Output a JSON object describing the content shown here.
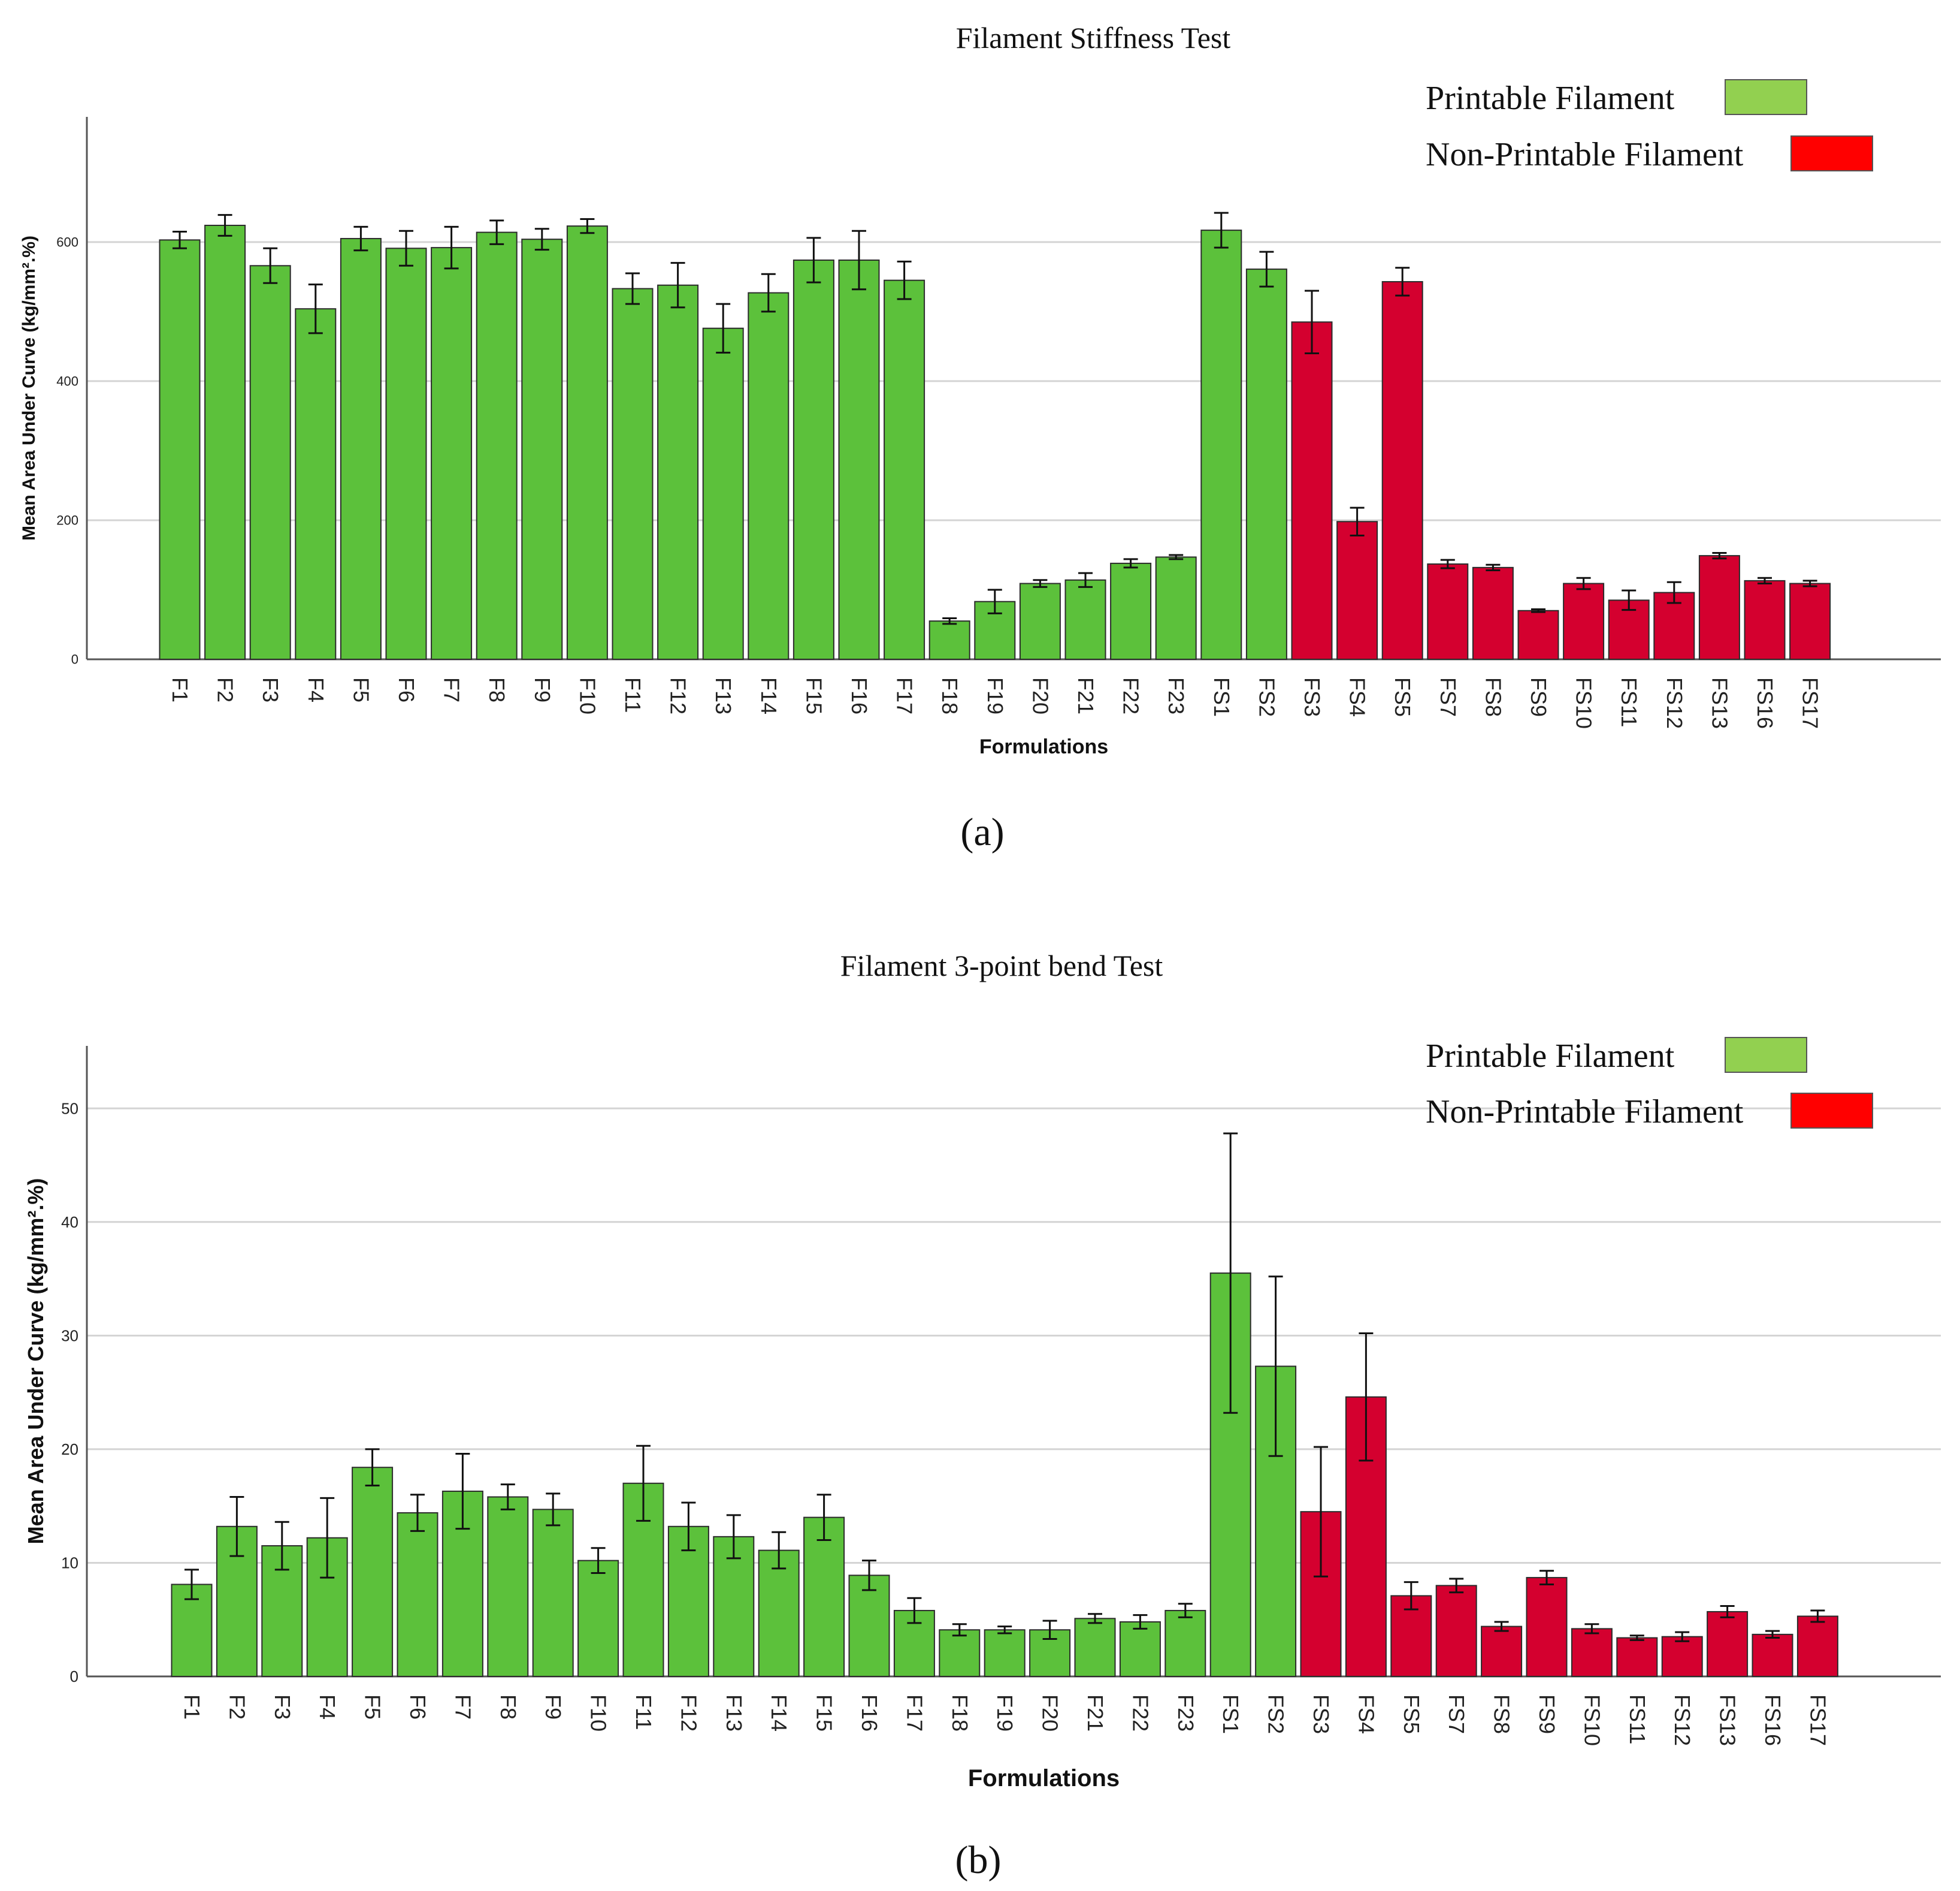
{
  "colors": {
    "printable_bar": "#5cc13b",
    "nonprintable_bar": "#d4002f",
    "printable_legend": "#92d050",
    "nonprintable_legend": "#ff0000"
  },
  "chart_data": [
    {
      "type": "bar",
      "panel_label": "(a)",
      "title": "Filament Stiffness Test",
      "xlabel": "Formulations",
      "ylabel": "Mean Area Under Curve (kg/mm².%)",
      "ylim": [
        0,
        780
      ],
      "yticks": [
        0,
        200,
        400,
        600
      ],
      "grid": true,
      "legend": [
        {
          "label": "Printable Filament",
          "status": "printable"
        },
        {
          "label": "Non-Printable Filament",
          "status": "nonprintable"
        }
      ],
      "legend_position": "top-right",
      "categories": [
        "F1",
        "F2",
        "F3",
        "F4",
        "F5",
        "F6",
        "F7",
        "F8",
        "F9",
        "F10",
        "F11",
        "F12",
        "F13",
        "F14",
        "F15",
        "F16",
        "F17",
        "F18",
        "F19",
        "F20",
        "F21",
        "F22",
        "F23",
        "FS1",
        "FS2",
        "FS3",
        "FS4",
        "FS5",
        "FS7",
        "FS8",
        "FS9",
        "FS10",
        "FS11",
        "FS12",
        "FS13",
        "FS16",
        "FS17"
      ],
      "values": [
        603,
        624,
        566,
        504,
        605,
        591,
        592,
        614,
        604,
        623,
        533,
        538,
        476,
        527,
        574,
        574,
        545,
        55,
        83,
        109,
        114,
        138,
        147,
        617,
        561,
        485,
        198,
        543,
        137,
        132,
        70,
        109,
        85,
        96,
        149,
        113,
        109
      ],
      "errors": [
        12,
        15,
        25,
        35,
        17,
        25,
        30,
        17,
        15,
        10,
        22,
        32,
        35,
        27,
        32,
        42,
        27,
        4,
        17,
        5,
        10,
        6,
        3,
        25,
        25,
        45,
        20,
        20,
        6,
        4,
        2,
        8,
        14,
        15,
        4,
        4,
        4
      ],
      "status": [
        "printable",
        "printable",
        "printable",
        "printable",
        "printable",
        "printable",
        "printable",
        "printable",
        "printable",
        "printable",
        "printable",
        "printable",
        "printable",
        "printable",
        "printable",
        "printable",
        "printable",
        "printable",
        "printable",
        "printable",
        "printable",
        "printable",
        "printable",
        "printable",
        "printable",
        "nonprintable",
        "nonprintable",
        "nonprintable",
        "nonprintable",
        "nonprintable",
        "nonprintable",
        "nonprintable",
        "nonprintable",
        "nonprintable",
        "nonprintable",
        "nonprintable",
        "nonprintable"
      ]
    },
    {
      "type": "bar",
      "panel_label": "(b)",
      "title": "Filament  3-point bend Test",
      "xlabel": "Formulations",
      "ylabel": "Mean Area Under Curve (kg/mm².%)",
      "ylim": [
        0,
        55.5
      ],
      "yticks": [
        0,
        10,
        20,
        30,
        40,
        50
      ],
      "grid": true,
      "legend": [
        {
          "label": "Printable Filament",
          "status": "printable"
        },
        {
          "label": "Non-Printable Filament",
          "status": "nonprintable"
        }
      ],
      "legend_position": "top-right",
      "categories": [
        "F1",
        "F2",
        "F3",
        "F4",
        "F5",
        "F6",
        "F7",
        "F8",
        "F9",
        "F10",
        "F11",
        "F12",
        "F13",
        "F14",
        "F15",
        "F16",
        "F17",
        "F18",
        "F19",
        "F20",
        "F21",
        "F22",
        "F23",
        "FS1",
        "FS2",
        "FS3",
        "FS4",
        "FS5",
        "FS7",
        "FS8",
        "FS9",
        "FS10",
        "FS11",
        "FS12",
        "FS13",
        "FS16",
        "FS17"
      ],
      "values": [
        8.1,
        13.2,
        11.5,
        12.2,
        18.4,
        14.4,
        16.3,
        15.8,
        14.7,
        10.2,
        17.0,
        13.2,
        12.3,
        11.1,
        14.0,
        8.9,
        5.8,
        4.1,
        4.1,
        4.1,
        5.1,
        4.8,
        5.8,
        35.5,
        27.3,
        14.5,
        24.6,
        7.1,
        8.0,
        4.4,
        8.7,
        4.2,
        3.4,
        3.5,
        5.7,
        3.7,
        5.3
      ],
      "errors": [
        1.3,
        2.6,
        2.1,
        3.5,
        1.6,
        1.6,
        3.3,
        1.1,
        1.4,
        1.1,
        3.3,
        2.1,
        1.9,
        1.6,
        2.0,
        1.3,
        1.1,
        0.5,
        0.3,
        0.8,
        0.4,
        0.6,
        0.6,
        12.3,
        7.9,
        5.7,
        5.6,
        1.2,
        0.6,
        0.4,
        0.6,
        0.4,
        0.2,
        0.4,
        0.5,
        0.3,
        0.5
      ],
      "status": [
        "printable",
        "printable",
        "printable",
        "printable",
        "printable",
        "printable",
        "printable",
        "printable",
        "printable",
        "printable",
        "printable",
        "printable",
        "printable",
        "printable",
        "printable",
        "printable",
        "printable",
        "printable",
        "printable",
        "printable",
        "printable",
        "printable",
        "printable",
        "printable",
        "printable",
        "nonprintable",
        "nonprintable",
        "nonprintable",
        "nonprintable",
        "nonprintable",
        "nonprintable",
        "nonprintable",
        "nonprintable",
        "nonprintable",
        "nonprintable",
        "nonprintable",
        "nonprintable"
      ]
    }
  ]
}
